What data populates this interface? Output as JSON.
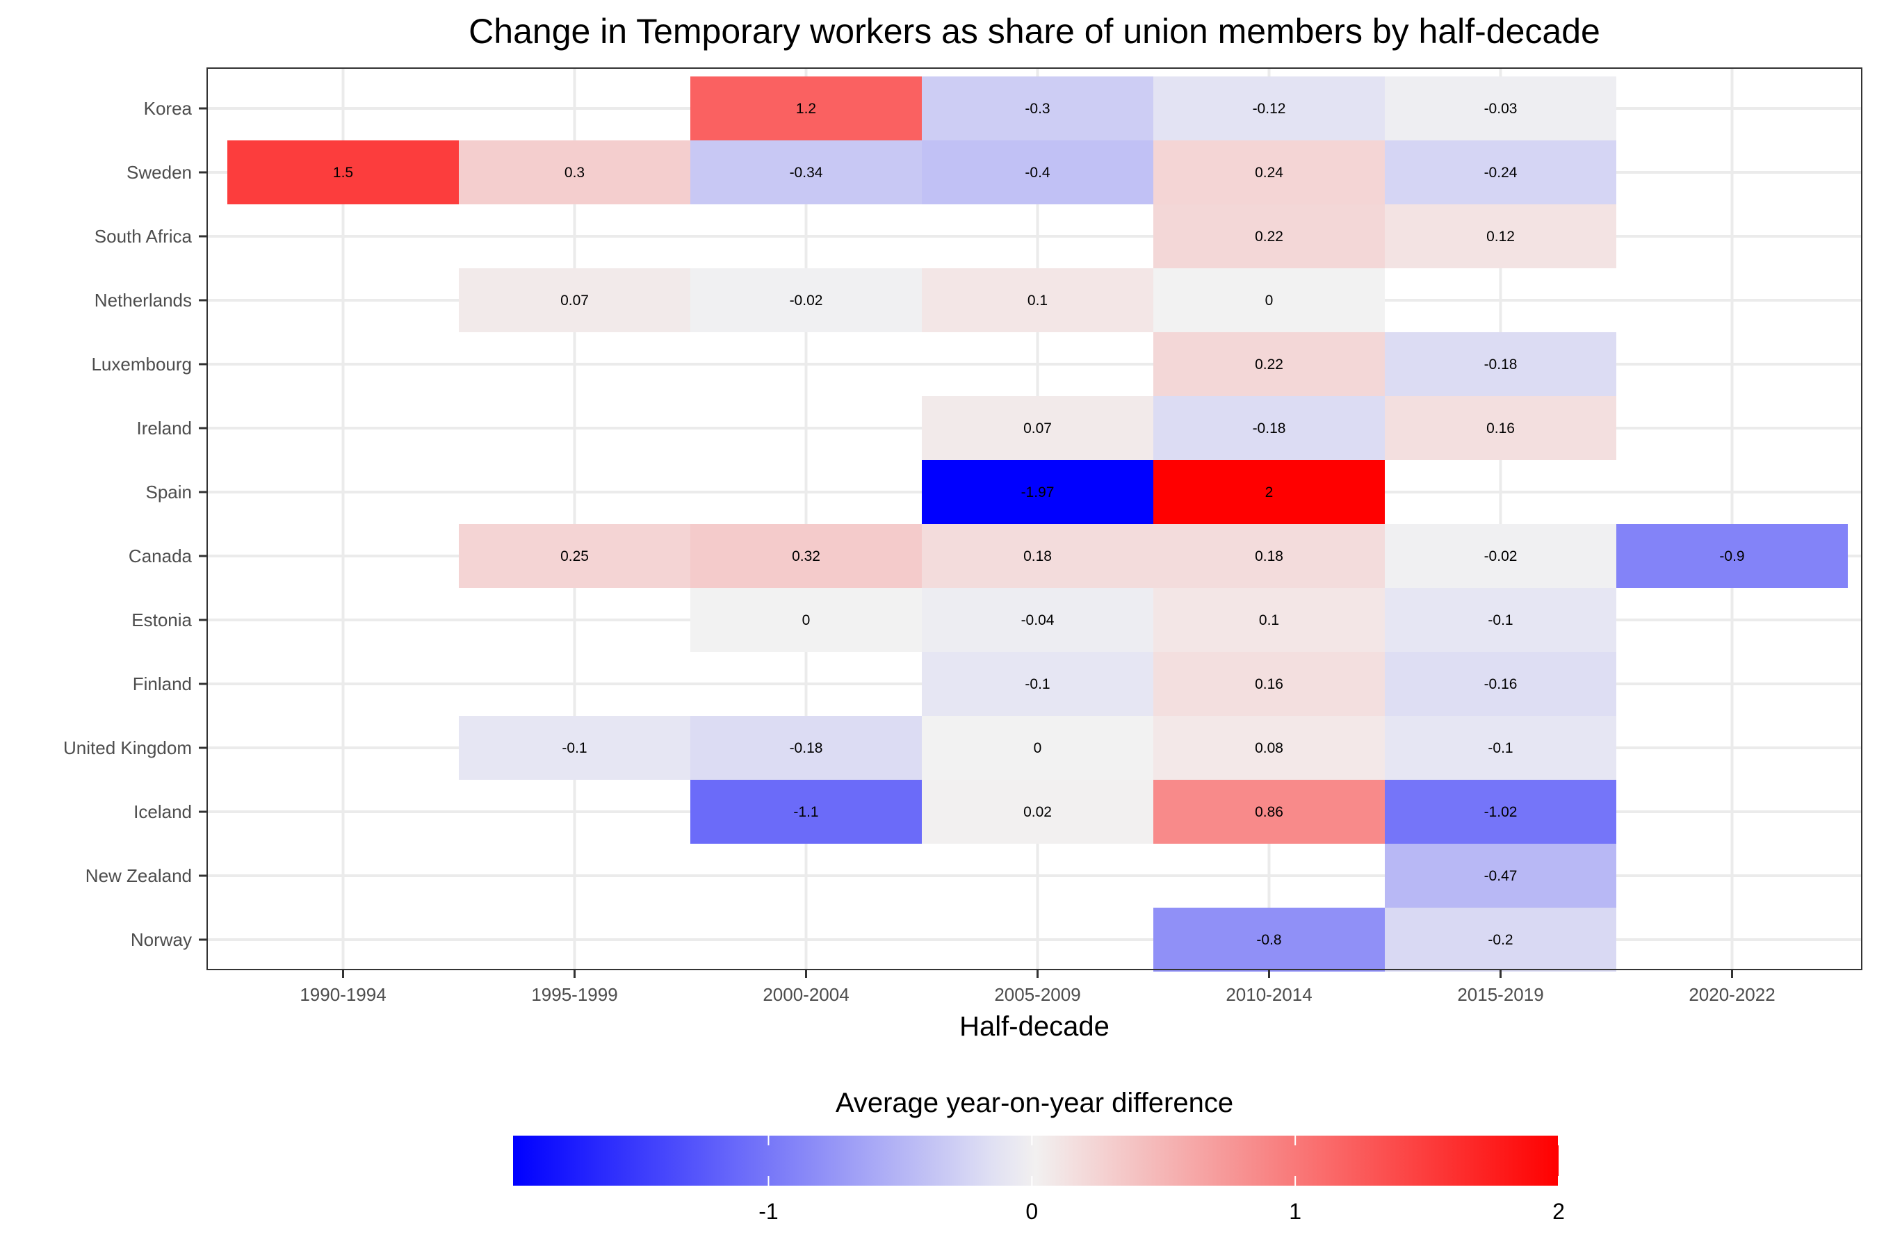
{
  "chart_data": {
    "type": "heatmap",
    "title": "Change in Temporary workers as share of union members by half-decade",
    "xlabel": "Half-decade",
    "ylabel": "",
    "x_categories": [
      "1990-1994",
      "1995-1999",
      "2000-2004",
      "2005-2009",
      "2010-2014",
      "2015-2019",
      "2020-2022"
    ],
    "y_categories": [
      "Korea",
      "Sweden",
      "South Africa",
      "Netherlands",
      "Luxembourg",
      "Ireland",
      "Spain",
      "Canada",
      "Estonia",
      "Finland",
      "United Kingdom",
      "Iceland",
      "New Zealand",
      "Norway"
    ],
    "cells": [
      {
        "country": "Korea",
        "period": "2000-2004",
        "value": 1.2,
        "label": "1.2"
      },
      {
        "country": "Korea",
        "period": "2005-2009",
        "value": -0.3,
        "label": "-0.3"
      },
      {
        "country": "Korea",
        "period": "2010-2014",
        "value": -0.12,
        "label": "-0.12"
      },
      {
        "country": "Korea",
        "period": "2015-2019",
        "value": -0.03,
        "label": "-0.03"
      },
      {
        "country": "Sweden",
        "period": "1990-1994",
        "value": 1.5,
        "label": "1.5"
      },
      {
        "country": "Sweden",
        "period": "1995-1999",
        "value": 0.3,
        "label": "0.3"
      },
      {
        "country": "Sweden",
        "period": "2000-2004",
        "value": -0.34,
        "label": "-0.34"
      },
      {
        "country": "Sweden",
        "period": "2005-2009",
        "value": -0.4,
        "label": "-0.4"
      },
      {
        "country": "Sweden",
        "period": "2010-2014",
        "value": 0.24,
        "label": "0.24"
      },
      {
        "country": "Sweden",
        "period": "2015-2019",
        "value": -0.24,
        "label": "-0.24"
      },
      {
        "country": "South Africa",
        "period": "2010-2014",
        "value": 0.22,
        "label": "0.22"
      },
      {
        "country": "South Africa",
        "period": "2015-2019",
        "value": 0.12,
        "label": "0.12"
      },
      {
        "country": "Netherlands",
        "period": "1995-1999",
        "value": 0.07,
        "label": "0.07"
      },
      {
        "country": "Netherlands",
        "period": "2000-2004",
        "value": -0.02,
        "label": "-0.02"
      },
      {
        "country": "Netherlands",
        "period": "2005-2009",
        "value": 0.1,
        "label": "0.1"
      },
      {
        "country": "Netherlands",
        "period": "2010-2014",
        "value": 0,
        "label": "0"
      },
      {
        "country": "Luxembourg",
        "period": "2010-2014",
        "value": 0.22,
        "label": "0.22"
      },
      {
        "country": "Luxembourg",
        "period": "2015-2019",
        "value": -0.18,
        "label": "-0.18"
      },
      {
        "country": "Ireland",
        "period": "2005-2009",
        "value": 0.07,
        "label": "0.07"
      },
      {
        "country": "Ireland",
        "period": "2010-2014",
        "value": -0.18,
        "label": "-0.18"
      },
      {
        "country": "Ireland",
        "period": "2015-2019",
        "value": 0.16,
        "label": "0.16"
      },
      {
        "country": "Spain",
        "period": "2005-2009",
        "value": -1.97,
        "label": "-1.97"
      },
      {
        "country": "Spain",
        "period": "2010-2014",
        "value": 2,
        "label": "2"
      },
      {
        "country": "Canada",
        "period": "1995-1999",
        "value": 0.25,
        "label": "0.25"
      },
      {
        "country": "Canada",
        "period": "2000-2004",
        "value": 0.32,
        "label": "0.32"
      },
      {
        "country": "Canada",
        "period": "2005-2009",
        "value": 0.18,
        "label": "0.18"
      },
      {
        "country": "Canada",
        "period": "2010-2014",
        "value": 0.18,
        "label": "0.18"
      },
      {
        "country": "Canada",
        "period": "2015-2019",
        "value": -0.02,
        "label": "-0.02"
      },
      {
        "country": "Canada",
        "period": "2020-2022",
        "value": -0.9,
        "label": "-0.9"
      },
      {
        "country": "Estonia",
        "period": "2000-2004",
        "value": 0,
        "label": "0"
      },
      {
        "country": "Estonia",
        "period": "2005-2009",
        "value": -0.04,
        "label": "-0.04"
      },
      {
        "country": "Estonia",
        "period": "2010-2014",
        "value": 0.1,
        "label": "0.1"
      },
      {
        "country": "Estonia",
        "period": "2015-2019",
        "value": -0.1,
        "label": "-0.1"
      },
      {
        "country": "Finland",
        "period": "2005-2009",
        "value": -0.1,
        "label": "-0.1"
      },
      {
        "country": "Finland",
        "period": "2010-2014",
        "value": 0.16,
        "label": "0.16"
      },
      {
        "country": "Finland",
        "period": "2015-2019",
        "value": -0.16,
        "label": "-0.16"
      },
      {
        "country": "United Kingdom",
        "period": "1995-1999",
        "value": -0.1,
        "label": "-0.1"
      },
      {
        "country": "United Kingdom",
        "period": "2000-2004",
        "value": -0.18,
        "label": "-0.18"
      },
      {
        "country": "United Kingdom",
        "period": "2005-2009",
        "value": 0,
        "label": "0"
      },
      {
        "country": "United Kingdom",
        "period": "2010-2014",
        "value": 0.08,
        "label": "0.08"
      },
      {
        "country": "United Kingdom",
        "period": "2015-2019",
        "value": -0.1,
        "label": "-0.1"
      },
      {
        "country": "Iceland",
        "period": "2000-2004",
        "value": -1.1,
        "label": "-1.1"
      },
      {
        "country": "Iceland",
        "period": "2005-2009",
        "value": 0.02,
        "label": "0.02"
      },
      {
        "country": "Iceland",
        "period": "2010-2014",
        "value": 0.86,
        "label": "0.86"
      },
      {
        "country": "Iceland",
        "period": "2015-2019",
        "value": -1.02,
        "label": "-1.02"
      },
      {
        "country": "New Zealand",
        "period": "2015-2019",
        "value": -0.47,
        "label": "-0.47"
      },
      {
        "country": "Norway",
        "period": "2010-2014",
        "value": -0.8,
        "label": "-0.8"
      },
      {
        "country": "Norway",
        "period": "2015-2019",
        "value": -0.2,
        "label": "-0.2"
      }
    ],
    "legend": {
      "title": "Average year-on-year difference",
      "position": "bottom",
      "range": [
        -1.97,
        2
      ],
      "ticks": [
        -1,
        0,
        1,
        2
      ],
      "tick_labels": [
        "-1",
        "0",
        "1",
        "2"
      ]
    },
    "colors": {
      "low": "#0000ff",
      "mid": "#f2f2f2",
      "high": "#ff0000",
      "grid": "#ebebeb",
      "panel_border": "#333333"
    },
    "grid": true
  }
}
